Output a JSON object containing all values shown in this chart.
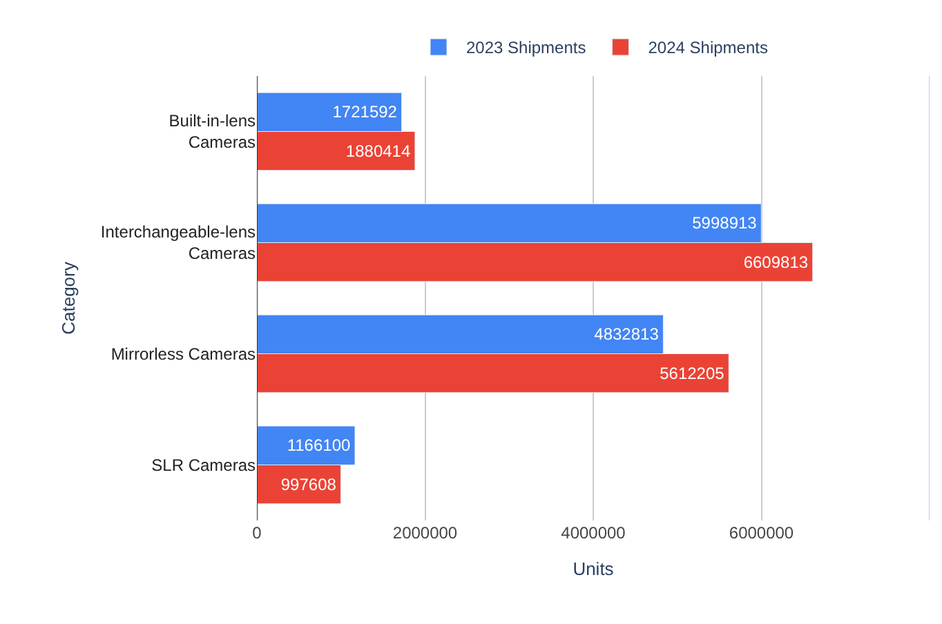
{
  "chart_data": {
    "type": "bar",
    "orientation": "horizontal",
    "xlabel": "Units",
    "ylabel": "Category",
    "categories": [
      "Built-in-lens Cameras",
      "Interchangeable-lens Cameras",
      "Mirrorless Cameras",
      "SLR Cameras"
    ],
    "series": [
      {
        "name": "2023 Shipments",
        "color": "#4285f4",
        "values": [
          1721592,
          5998913,
          4832813,
          1166100
        ]
      },
      {
        "name": "2024 Shipments",
        "color": "#ea4335",
        "values": [
          1880414,
          6609813,
          5612205,
          997608
        ]
      }
    ],
    "xlim": [
      0,
      8000000
    ],
    "xticks": [
      0,
      2000000,
      4000000,
      6000000,
      {
        "value": 8000000,
        "label": null
      }
    ],
    "grid": "x",
    "legend": "top",
    "data_labels": true
  }
}
